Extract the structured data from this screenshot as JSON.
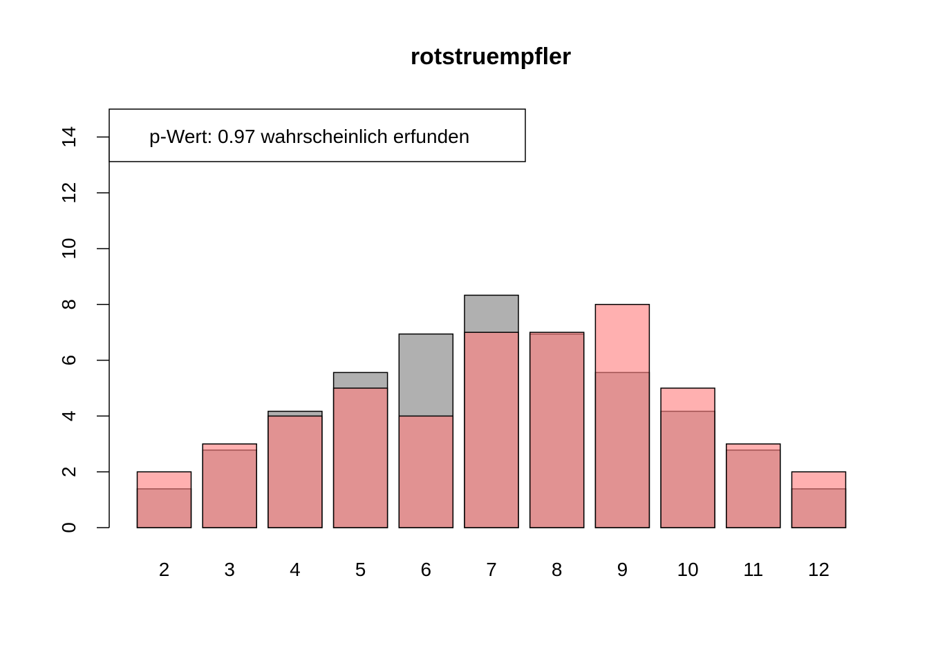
{
  "chart_data": {
    "type": "bar",
    "title": "rotstruempfler",
    "xlabel": "",
    "ylabel": "",
    "categories": [
      "2",
      "3",
      "4",
      "5",
      "6",
      "7",
      "8",
      "9",
      "10",
      "11",
      "12"
    ],
    "ylim": [
      0,
      15
    ],
    "yticks": [
      "0",
      "2",
      "4",
      "6",
      "8",
      "10",
      "12",
      "14"
    ],
    "grid": false,
    "series": [
      {
        "color": "#b0b0b0",
        "values": [
          1.39,
          2.78,
          4.17,
          5.56,
          6.94,
          8.33,
          6.94,
          5.56,
          4.17,
          2.78,
          1.39
        ]
      },
      {
        "color": "#ff7f7f",
        "overlap_color": "#d8585b",
        "values": [
          2,
          3,
          4,
          5,
          4,
          7,
          7,
          8,
          5,
          3,
          2
        ]
      }
    ],
    "legend": {
      "position": "top-left",
      "text": "p-Wert: 0.97 wahrscheinlich erfunden"
    }
  }
}
